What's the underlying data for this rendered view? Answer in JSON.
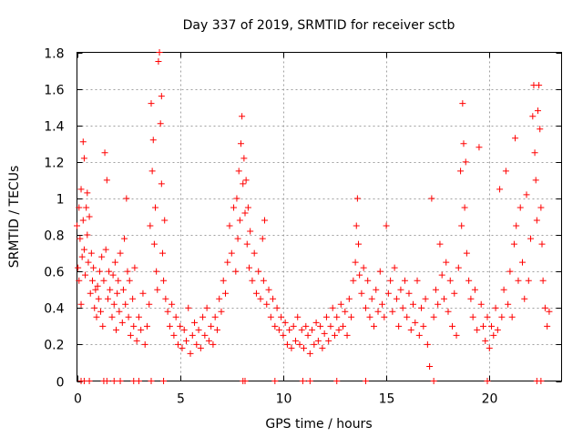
{
  "chart_data": {
    "type": "scatter",
    "title": "Day 337 of 2019, SRMTID for receiver sctb",
    "xlabel": "GPS time / hours",
    "ylabel": "SRMTID / TECUs",
    "xlim": [
      0,
      23.5
    ],
    "ylim": [
      0,
      1.8
    ],
    "x_ticks": [
      0,
      5,
      10,
      15,
      20
    ],
    "x_tick_labels": [
      "0",
      "5",
      "10",
      "15",
      "20"
    ],
    "y_ticks": [
      0,
      0.2,
      0.4,
      0.6,
      0.8,
      1.0,
      1.2,
      1.4,
      1.6,
      1.8
    ],
    "y_tick_labels": [
      "0",
      "0.2",
      "0.4",
      "0.6",
      "0.8",
      "1",
      "1.2",
      "1.4",
      "1.6",
      "1.8"
    ],
    "grid": true,
    "marker": "+",
    "color": "#ff0000",
    "series": [
      {
        "name": "SRMTID",
        "points": [
          [
            0.0,
            0.85
          ],
          [
            0.05,
            0.62
          ],
          [
            0.1,
            0.95
          ],
          [
            0.1,
            0.55
          ],
          [
            0.15,
            0.78
          ],
          [
            0.2,
            1.05
          ],
          [
            0.2,
            0.42
          ],
          [
            0.25,
            0.68
          ],
          [
            0.3,
            0.88
          ],
          [
            0.3,
            1.31
          ],
          [
            0.35,
            0.72
          ],
          [
            0.35,
            1.22
          ],
          [
            0.4,
            0.58
          ],
          [
            0.45,
            0.95
          ],
          [
            0.5,
            0.8
          ],
          [
            0.5,
            1.03
          ],
          [
            0.55,
            0.65
          ],
          [
            0.6,
            0.9
          ],
          [
            0.65,
            0.48
          ],
          [
            0.7,
            0.7
          ],
          [
            0.75,
            0.55
          ],
          [
            0.8,
            0.62
          ],
          [
            0.85,
            0.4
          ],
          [
            0.9,
            0.5
          ],
          [
            0.95,
            0.35
          ],
          [
            1.0,
            0.52
          ],
          [
            1.05,
            0.45
          ],
          [
            1.1,
            0.6
          ],
          [
            1.15,
            0.38
          ],
          [
            1.2,
            0.68
          ],
          [
            1.25,
            0.3
          ],
          [
            1.3,
            0.55
          ],
          [
            1.35,
            1.25
          ],
          [
            1.4,
            0.72
          ],
          [
            1.45,
            1.1
          ],
          [
            1.5,
            0.45
          ],
          [
            1.55,
            0.6
          ],
          [
            1.6,
            0.5
          ],
          [
            1.7,
            0.35
          ],
          [
            1.75,
            0.58
          ],
          [
            1.8,
            0.42
          ],
          [
            1.85,
            0.65
          ],
          [
            1.9,
            0.28
          ],
          [
            1.95,
            0.48
          ],
          [
            2.0,
            0.55
          ],
          [
            2.05,
            0.38
          ],
          [
            2.1,
            0.7
          ],
          [
            2.2,
            0.32
          ],
          [
            2.25,
            0.5
          ],
          [
            2.3,
            0.78
          ],
          [
            2.35,
            0.42
          ],
          [
            2.4,
            1.0
          ],
          [
            2.45,
            0.6
          ],
          [
            2.5,
            0.35
          ],
          [
            2.55,
            0.55
          ],
          [
            2.6,
            0.25
          ],
          [
            2.7,
            0.45
          ],
          [
            2.75,
            0.3
          ],
          [
            2.8,
            0.62
          ],
          [
            2.9,
            0.22
          ],
          [
            3.0,
            0.35
          ],
          [
            3.1,
            0.28
          ],
          [
            3.2,
            0.48
          ],
          [
            3.3,
            0.2
          ],
          [
            3.4,
            0.3
          ],
          [
            3.5,
            0.42
          ],
          [
            3.55,
            0.85
          ],
          [
            3.6,
            1.52
          ],
          [
            3.65,
            1.15
          ],
          [
            3.7,
            1.32
          ],
          [
            3.75,
            0.75
          ],
          [
            3.8,
            0.95
          ],
          [
            3.85,
            0.6
          ],
          [
            3.9,
            0.5
          ],
          [
            3.95,
            1.75
          ],
          [
            4.0,
            1.8
          ],
          [
            4.05,
            1.41
          ],
          [
            4.1,
            1.56
          ],
          [
            4.1,
            1.08
          ],
          [
            4.15,
            0.7
          ],
          [
            4.2,
            0.55
          ],
          [
            4.25,
            0.88
          ],
          [
            4.3,
            0.45
          ],
          [
            4.4,
            0.38
          ],
          [
            4.5,
            0.3
          ],
          [
            4.6,
            0.42
          ],
          [
            4.7,
            0.25
          ],
          [
            4.8,
            0.35
          ],
          [
            4.9,
            0.2
          ],
          [
            5.0,
            0.3
          ],
          [
            5.1,
            0.18
          ],
          [
            5.2,
            0.28
          ],
          [
            5.3,
            0.22
          ],
          [
            5.4,
            0.4
          ],
          [
            5.5,
            0.15
          ],
          [
            5.6,
            0.25
          ],
          [
            5.7,
            0.32
          ],
          [
            5.8,
            0.2
          ],
          [
            5.9,
            0.28
          ],
          [
            6.0,
            0.18
          ],
          [
            6.1,
            0.35
          ],
          [
            6.2,
            0.25
          ],
          [
            6.3,
            0.4
          ],
          [
            6.4,
            0.22
          ],
          [
            6.5,
            0.3
          ],
          [
            6.6,
            0.2
          ],
          [
            6.7,
            0.35
          ],
          [
            6.8,
            0.28
          ],
          [
            6.9,
            0.45
          ],
          [
            7.0,
            0.38
          ],
          [
            7.1,
            0.55
          ],
          [
            7.2,
            0.48
          ],
          [
            7.3,
            0.65
          ],
          [
            7.4,
            0.85
          ],
          [
            7.5,
            0.7
          ],
          [
            7.6,
            0.95
          ],
          [
            7.7,
            0.6
          ],
          [
            7.75,
            1.0
          ],
          [
            7.8,
            0.78
          ],
          [
            7.85,
            1.15
          ],
          [
            7.9,
            0.88
          ],
          [
            7.95,
            1.3
          ],
          [
            8.0,
            1.45
          ],
          [
            8.05,
            1.08
          ],
          [
            8.1,
            1.22
          ],
          [
            8.15,
            0.92
          ],
          [
            8.2,
            1.1
          ],
          [
            8.25,
            0.75
          ],
          [
            8.3,
            0.95
          ],
          [
            8.35,
            0.62
          ],
          [
            8.4,
            0.82
          ],
          [
            8.5,
            0.55
          ],
          [
            8.6,
            0.7
          ],
          [
            8.7,
            0.48
          ],
          [
            8.8,
            0.6
          ],
          [
            8.9,
            0.45
          ],
          [
            9.0,
            0.78
          ],
          [
            9.05,
            0.55
          ],
          [
            9.1,
            0.88
          ],
          [
            9.2,
            0.42
          ],
          [
            9.3,
            0.5
          ],
          [
            9.4,
            0.35
          ],
          [
            9.5,
            0.45
          ],
          [
            9.6,
            0.3
          ],
          [
            9.7,
            0.4
          ],
          [
            9.8,
            0.28
          ],
          [
            9.9,
            0.35
          ],
          [
            10.0,
            0.25
          ],
          [
            10.1,
            0.32
          ],
          [
            10.2,
            0.2
          ],
          [
            10.3,
            0.28
          ],
          [
            10.4,
            0.18
          ],
          [
            10.5,
            0.3
          ],
          [
            10.6,
            0.22
          ],
          [
            10.7,
            0.35
          ],
          [
            10.8,
            0.2
          ],
          [
            10.9,
            0.28
          ],
          [
            11.0,
            0.18
          ],
          [
            11.1,
            0.3
          ],
          [
            11.2,
            0.25
          ],
          [
            11.3,
            0.15
          ],
          [
            11.4,
            0.28
          ],
          [
            11.5,
            0.2
          ],
          [
            11.6,
            0.32
          ],
          [
            11.7,
            0.22
          ],
          [
            11.8,
            0.3
          ],
          [
            11.9,
            0.18
          ],
          [
            12.0,
            0.26
          ],
          [
            12.1,
            0.35
          ],
          [
            12.2,
            0.22
          ],
          [
            12.3,
            0.3
          ],
          [
            12.4,
            0.4
          ],
          [
            12.5,
            0.25
          ],
          [
            12.6,
            0.35
          ],
          [
            12.7,
            0.28
          ],
          [
            12.8,
            0.42
          ],
          [
            12.9,
            0.3
          ],
          [
            13.0,
            0.38
          ],
          [
            13.1,
            0.25
          ],
          [
            13.2,
            0.45
          ],
          [
            13.3,
            0.35
          ],
          [
            13.4,
            0.55
          ],
          [
            13.5,
            0.65
          ],
          [
            13.55,
            0.85
          ],
          [
            13.6,
            1.0
          ],
          [
            13.65,
            0.75
          ],
          [
            13.7,
            0.58
          ],
          [
            13.8,
            0.48
          ],
          [
            13.9,
            0.62
          ],
          [
            14.0,
            0.4
          ],
          [
            14.1,
            0.55
          ],
          [
            14.2,
            0.35
          ],
          [
            14.3,
            0.45
          ],
          [
            14.4,
            0.3
          ],
          [
            14.5,
            0.5
          ],
          [
            14.6,
            0.38
          ],
          [
            14.7,
            0.6
          ],
          [
            14.8,
            0.42
          ],
          [
            14.9,
            0.35
          ],
          [
            15.0,
            0.85
          ],
          [
            15.1,
            0.48
          ],
          [
            15.2,
            0.55
          ],
          [
            15.3,
            0.38
          ],
          [
            15.4,
            0.62
          ],
          [
            15.5,
            0.45
          ],
          [
            15.6,
            0.3
          ],
          [
            15.7,
            0.5
          ],
          [
            15.8,
            0.4
          ],
          [
            15.9,
            0.55
          ],
          [
            16.0,
            0.35
          ],
          [
            16.1,
            0.48
          ],
          [
            16.2,
            0.28
          ],
          [
            16.3,
            0.42
          ],
          [
            16.4,
            0.32
          ],
          [
            16.5,
            0.55
          ],
          [
            16.6,
            0.25
          ],
          [
            16.7,
            0.4
          ],
          [
            16.8,
            0.3
          ],
          [
            16.9,
            0.45
          ],
          [
            17.0,
            0.2
          ],
          [
            17.1,
            0.08
          ],
          [
            17.2,
            1.0
          ],
          [
            17.3,
            0.35
          ],
          [
            17.4,
            0.5
          ],
          [
            17.5,
            0.42
          ],
          [
            17.6,
            0.75
          ],
          [
            17.7,
            0.58
          ],
          [
            17.8,
            0.45
          ],
          [
            17.9,
            0.65
          ],
          [
            18.0,
            0.38
          ],
          [
            18.1,
            0.55
          ],
          [
            18.2,
            0.3
          ],
          [
            18.3,
            0.48
          ],
          [
            18.4,
            0.25
          ],
          [
            18.5,
            0.62
          ],
          [
            18.6,
            1.15
          ],
          [
            18.65,
            0.85
          ],
          [
            18.7,
            1.52
          ],
          [
            18.75,
            1.3
          ],
          [
            18.8,
            0.95
          ],
          [
            18.85,
            1.2
          ],
          [
            18.9,
            0.7
          ],
          [
            19.0,
            0.55
          ],
          [
            19.1,
            0.45
          ],
          [
            19.2,
            0.35
          ],
          [
            19.3,
            0.5
          ],
          [
            19.4,
            0.28
          ],
          [
            19.5,
            1.28
          ],
          [
            19.6,
            0.42
          ],
          [
            19.7,
            0.3
          ],
          [
            19.8,
            0.22
          ],
          [
            19.9,
            0.35
          ],
          [
            20.0,
            0.18
          ],
          [
            20.1,
            0.3
          ],
          [
            20.2,
            0.25
          ],
          [
            20.3,
            0.4
          ],
          [
            20.4,
            0.28
          ],
          [
            20.5,
            1.05
          ],
          [
            20.6,
            0.35
          ],
          [
            20.7,
            0.5
          ],
          [
            20.8,
            1.15
          ],
          [
            20.9,
            0.42
          ],
          [
            21.0,
            0.6
          ],
          [
            21.1,
            0.35
          ],
          [
            21.2,
            0.75
          ],
          [
            21.25,
            1.33
          ],
          [
            21.3,
            0.85
          ],
          [
            21.4,
            0.55
          ],
          [
            21.5,
            0.95
          ],
          [
            21.6,
            0.65
          ],
          [
            21.7,
            0.45
          ],
          [
            21.8,
            1.02
          ],
          [
            21.9,
            0.55
          ],
          [
            22.0,
            0.78
          ],
          [
            22.1,
            1.45
          ],
          [
            22.15,
            1.62
          ],
          [
            22.2,
            1.25
          ],
          [
            22.25,
            1.1
          ],
          [
            22.3,
            0.88
          ],
          [
            22.35,
            1.48
          ],
          [
            22.4,
            1.62
          ],
          [
            22.45,
            1.38
          ],
          [
            22.5,
            0.95
          ],
          [
            22.55,
            0.75
          ],
          [
            22.6,
            0.55
          ],
          [
            22.7,
            0.4
          ],
          [
            22.8,
            0.3
          ],
          [
            22.9,
            0.38
          ],
          [
            0.2,
            0.0
          ],
          [
            0.35,
            0.0
          ],
          [
            0.6,
            0.0
          ],
          [
            1.3,
            0.0
          ],
          [
            1.45,
            0.0
          ],
          [
            1.8,
            0.0
          ],
          [
            2.1,
            0.0
          ],
          [
            2.75,
            0.0
          ],
          [
            3.0,
            0.0
          ],
          [
            3.6,
            0.0
          ],
          [
            4.2,
            0.0
          ],
          [
            8.05,
            0.0
          ],
          [
            8.15,
            0.0
          ],
          [
            9.6,
            0.0
          ],
          [
            10.95,
            0.0
          ],
          [
            11.3,
            0.0
          ],
          [
            12.6,
            0.0
          ],
          [
            14.0,
            0.0
          ],
          [
            17.3,
            0.0
          ],
          [
            19.9,
            0.0
          ],
          [
            22.3,
            0.0
          ],
          [
            22.5,
            0.0
          ]
        ]
      }
    ]
  }
}
